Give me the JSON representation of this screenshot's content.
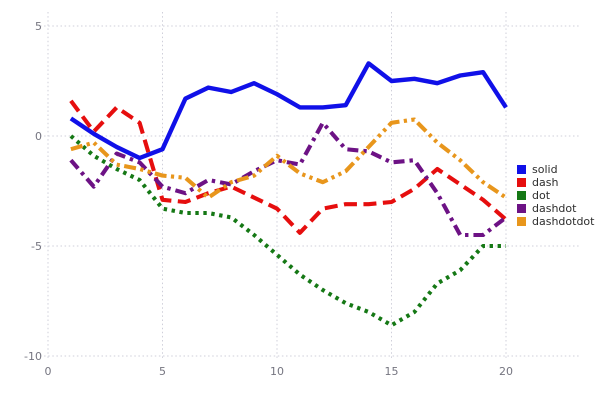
{
  "chart_data": {
    "type": "line",
    "title": "",
    "xlabel": "",
    "ylabel": "",
    "grid": "dotted",
    "grid_color": "#cfcfda",
    "tick_label_color": "#757580",
    "legend_position": "right",
    "xlim": [
      0,
      23.2
    ],
    "ylim": [
      -10.3,
      5.6
    ],
    "xticks": [
      0,
      5,
      10,
      15,
      20
    ],
    "yticks": [
      5,
      0,
      -5,
      -10
    ],
    "x": [
      1,
      2,
      3,
      4,
      5,
      6,
      7,
      8,
      9,
      10,
      11,
      12,
      13,
      14,
      15,
      16,
      17,
      18,
      19,
      20
    ],
    "series": [
      {
        "name": "solid",
        "style": "solid",
        "color": "#1010e8",
        "values": [
          0.8,
          0.1,
          -0.5,
          -1.0,
          -0.6,
          1.7,
          2.2,
          2.0,
          2.4,
          1.9,
          1.3,
          1.3,
          1.4,
          3.3,
          2.5,
          2.6,
          2.4,
          2.75,
          2.9,
          1.3
        ]
      },
      {
        "name": "dash",
        "style": "dash",
        "color": "#e60e0e",
        "values": [
          1.6,
          0.2,
          1.3,
          0.6,
          -2.9,
          -3.0,
          -2.6,
          -2.3,
          -2.8,
          -3.3,
          -4.4,
          -3.3,
          -3.1,
          -3.1,
          -3.0,
          -2.4,
          -1.5,
          -2.2,
          -2.9,
          -3.8
        ]
      },
      {
        "name": "dot",
        "style": "dot",
        "color": "#157815",
        "values": [
          0.0,
          -0.9,
          -1.5,
          -2.0,
          -3.3,
          -3.5,
          -3.5,
          -3.7,
          -4.5,
          -5.4,
          -6.3,
          -7.0,
          -7.6,
          -8.0,
          -8.6,
          -8.0,
          -6.7,
          -6.1,
          -5.0,
          -5.0
        ]
      },
      {
        "name": "dashdot",
        "style": "dashdot",
        "color": "#6d1285",
        "values": [
          -1.1,
          -2.3,
          -0.8,
          -1.2,
          -2.3,
          -2.6,
          -2.0,
          -2.2,
          -1.6,
          -1.1,
          -1.3,
          0.6,
          -0.6,
          -0.7,
          -1.2,
          -1.1,
          -2.6,
          -4.5,
          -4.5,
          -3.7
        ]
      },
      {
        "name": "dashdotdot",
        "style": "dashdotdot",
        "color": "#e8961c",
        "values": [
          -0.6,
          -0.3,
          -1.3,
          -1.5,
          -1.8,
          -1.9,
          -2.8,
          -2.1,
          -1.8,
          -0.9,
          -1.7,
          -2.1,
          -1.6,
          -0.5,
          0.6,
          0.75,
          -0.3,
          -1.1,
          -2.1,
          -2.8
        ]
      }
    ]
  }
}
